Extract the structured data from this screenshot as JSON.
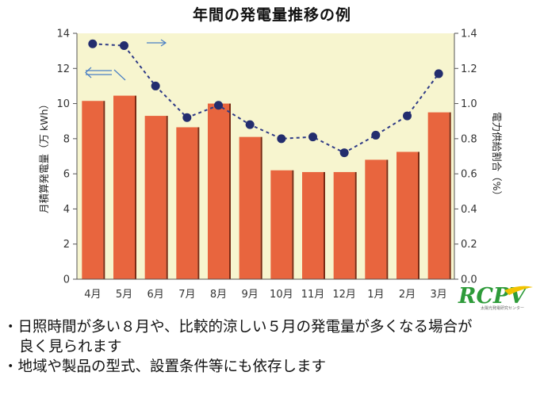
{
  "chart_data": {
    "type": "bar+line",
    "title": "年間の発電量推移の例",
    "categories": [
      "4月",
      "5月",
      "6月",
      "7月",
      "8月",
      "9月",
      "10月",
      "11月",
      "12月",
      "1月",
      "2月",
      "3月"
    ],
    "series": [
      {
        "type": "bar",
        "axis": "left",
        "values": [
          10.15,
          10.45,
          9.3,
          8.65,
          10.0,
          8.1,
          6.2,
          6.1,
          6.1,
          6.8,
          7.25,
          9.5
        ]
      },
      {
        "type": "line",
        "axis": "right",
        "style": "dashed-dots",
        "values": [
          1.34,
          1.33,
          1.1,
          0.92,
          0.99,
          0.88,
          0.8,
          0.81,
          0.72,
          0.82,
          0.93,
          1.17
        ]
      }
    ],
    "y_left": {
      "label": "月積算発電量（万 kWh）",
      "ylim": [
        0,
        14
      ],
      "ticks": [
        "0",
        "2",
        "4",
        "6",
        "8",
        "10",
        "12",
        "14"
      ]
    },
    "y_right": {
      "label": "電力供給割合（%）",
      "ylim": [
        0,
        1.4
      ],
      "ticks": [
        "0.0",
        "0.2",
        "0.4",
        "0.6",
        "0.8",
        "1.0",
        "1.2",
        "1.4"
      ]
    },
    "grid": false,
    "colors": {
      "bar": "#e8653e",
      "line": "#2e3a86",
      "plot_background": "#f7f5cf"
    }
  },
  "logo": {
    "text": "RCPV",
    "subtitle": "太陽光発電研究センター"
  },
  "notes": [
    "・日照時間が多い８月や、比較的涼しい５月の発電量が多くなる場合が",
    "良く見られます",
    "・地域や製品の型式、設置条件等にも依存します"
  ]
}
